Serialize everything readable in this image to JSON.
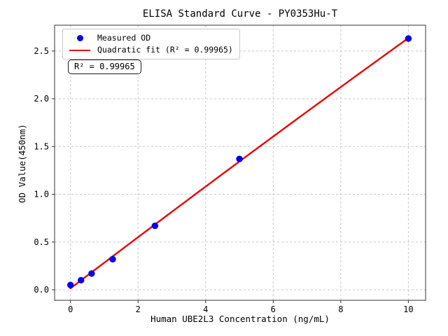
{
  "figure": {
    "background": "#ffffff"
  },
  "chart_data": {
    "type": "scatter",
    "title": "ELISA Standard Curve - PY0353Hu-T",
    "xlabel": "Human UBE2L3 Concentration (ng/mL)",
    "ylabel": "OD Value(450nm)",
    "xlim": [
      -0.47,
      10.51
    ],
    "ylim": [
      -0.11,
      2.77
    ],
    "x_ticks": [
      0,
      2,
      4,
      6,
      8,
      10
    ],
    "x_tick_labels": [
      "0",
      "2",
      "4",
      "6",
      "8",
      "10"
    ],
    "y_ticks": [
      0.0,
      0.5,
      1.0,
      1.5,
      2.0,
      2.5
    ],
    "y_tick_labels": [
      "0.0",
      "0.5",
      "1.0",
      "1.5",
      "2.0",
      "2.5"
    ],
    "grid": true,
    "grid_style": "dashed",
    "legend_position": "upper-left",
    "series": [
      {
        "name": "Measured OD",
        "type": "scatter",
        "color": "#0000ee",
        "x": [
          0,
          0.3125,
          0.625,
          1.25,
          2.5,
          5,
          10
        ],
        "y": [
          0.05,
          0.1,
          0.17,
          0.32,
          0.67,
          1.37,
          2.63
        ]
      },
      {
        "name": "Quadratic fit (R² = 0.99965)",
        "type": "line",
        "fit": "quadratic",
        "r_squared": 0.99965,
        "color": "#ee0000"
      }
    ],
    "annotation": "R² = 0.99965",
    "colors": {
      "marker": "#0000ee",
      "fit_line": "#ee0000",
      "grid": "#c9c9c9",
      "spine": "#333333",
      "text": "#000000"
    }
  },
  "legend": {
    "items": [
      {
        "label": "Measured OD",
        "marker": "dot",
        "color": "#0000ee"
      },
      {
        "label": "Quadratic fit (R² = 0.99965)",
        "marker": "line",
        "color": "#ee0000"
      }
    ]
  }
}
